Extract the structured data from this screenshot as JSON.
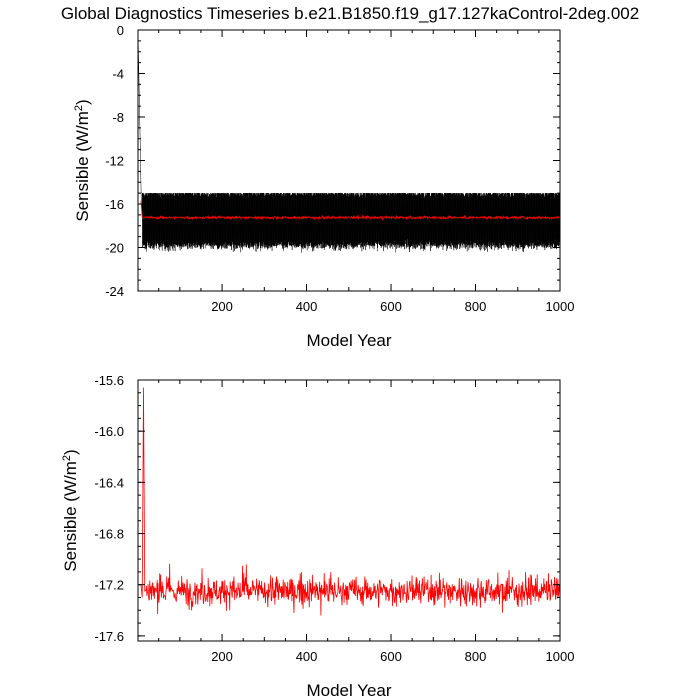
{
  "title": "Global Diagnostics Timeseries b.e21.B1850.f19_g17.127kaControl-2deg.002",
  "chart_data": [
    {
      "type": "line",
      "xlabel": "Model Year",
      "ylabel": "Sensible (W/m",
      "ylabel_sup": "2",
      "ylabel_close": ")",
      "xlim": [
        1,
        1000
      ],
      "ylim": [
        -24,
        0
      ],
      "x_ticks": [
        200,
        400,
        600,
        800,
        1000
      ],
      "y_ticks": [
        0,
        -4,
        -8,
        -12,
        -16,
        -20,
        -24
      ],
      "x_tick_labels": [
        "200",
        "400",
        "600",
        "800",
        "1000"
      ],
      "y_tick_labels": [
        "0",
        "-4",
        "-8",
        "-12",
        "-16",
        "-20",
        "-24"
      ],
      "series": [
        {
          "kind": "monthly",
          "color": "#000000",
          "initial_values": [
            0,
            -5,
            -10,
            -15.3
          ],
          "mean": -17.9,
          "min": -21.0,
          "max": -15.0
        },
        {
          "kind": "annual",
          "color": "#ff0000",
          "initial_values": [
            -15.7,
            -17.2
          ],
          "mean": -17.25,
          "min": -17.6,
          "max": -15.7
        }
      ]
    },
    {
      "type": "line",
      "xlabel": "Model Year",
      "ylabel": "Sensible (W/m",
      "ylabel_sup": "2",
      "ylabel_close": ")",
      "xlim": [
        1,
        1000
      ],
      "ylim": [
        -17.64,
        -15.6
      ],
      "x_ticks": [
        200,
        400,
        600,
        800,
        1000
      ],
      "y_ticks": [
        -15.6,
        -16.0,
        -16.4,
        -16.8,
        -17.2,
        -17.6
      ],
      "x_tick_labels": [
        "200",
        "400",
        "600",
        "800",
        "1000"
      ],
      "y_tick_labels": [
        "-15.6",
        "-16.0",
        "-16.4",
        "-16.8",
        "-17.2",
        "-17.6"
      ],
      "series": [
        {
          "kind": "annual",
          "color": "#ff0000",
          "initial_values": [
            -17.2,
            -17.3,
            -15.66,
            -17.25
          ],
          "mean": -17.25,
          "min": -17.58,
          "max": -15.66
        }
      ]
    }
  ]
}
